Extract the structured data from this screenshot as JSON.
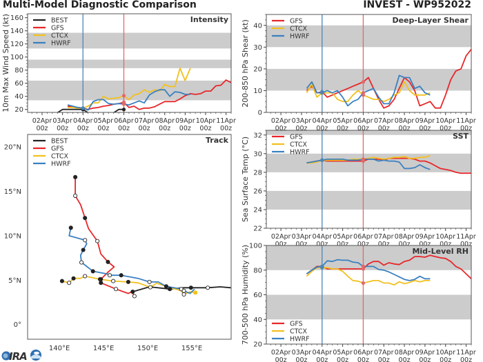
{
  "header": {
    "title": "Multi-Model Diagnostic Comparison",
    "storm": "INVEST - WP952022"
  },
  "logo_text": "CIRA",
  "colors": {
    "BEST": "#222222",
    "GFS": "#e8262a",
    "CTCX": "#f2c01e",
    "HWRF": "#3a80c0",
    "band": "#cccccc",
    "init_line": "#4a86b5",
    "current_line": "#e06a6a"
  },
  "time_axis": {
    "xlim": [
      "01Apr07z",
      "11Apr06z"
    ],
    "ticks": [
      {
        "day": "02Apr",
        "hour": "00z"
      },
      {
        "day": "03Apr",
        "hour": "00z"
      },
      {
        "day": "04Apr",
        "hour": "00z"
      },
      {
        "day": "05Apr",
        "hour": "00z"
      },
      {
        "day": "06Apr",
        "hour": "00z"
      },
      {
        "day": "07Apr",
        "hour": "00z"
      },
      {
        "day": "08Apr",
        "hour": "00z"
      },
      {
        "day": "09Apr",
        "hour": "00z"
      },
      {
        "day": "10Apr",
        "hour": "00z"
      },
      {
        "day": "11Apr",
        "hour": "00z"
      }
    ],
    "vertical_lines": [
      {
        "time": "04Apr00z",
        "color": "#4a86b5"
      },
      {
        "time": "06Apr00z",
        "color": "#e06a6a"
      }
    ]
  },
  "chart_data": [
    {
      "type": "line",
      "title": "Intensity",
      "ylabel": "10m Max Wind Speed (kt)",
      "ylim": [
        15.5,
        166
      ],
      "yticks": [
        20,
        40,
        60,
        80,
        100,
        120,
        140,
        160
      ],
      "bands": [
        [
          34,
          64
        ],
        [
          83,
          96
        ],
        [
          113,
          137
        ]
      ],
      "legend": "top-left",
      "grid": false,
      "series": [
        {
          "name": "BEST",
          "start": "02Apr18z",
          "step_hours": 6,
          "values": [
            15,
            20,
            20,
            20,
            20,
            20,
            15,
            15,
            15,
            15,
            15,
            15,
            20,
            20
          ]
        },
        {
          "name": "GFS",
          "start": "03Apr06z",
          "step_hours": 6,
          "values": [
            25,
            24,
            23,
            22,
            20,
            22,
            23,
            25,
            26,
            28,
            29,
            31,
            23,
            25,
            20,
            22,
            22,
            24,
            28,
            32,
            32,
            32,
            36,
            41,
            44,
            43,
            44,
            48,
            48,
            56,
            57,
            65,
            61
          ]
        },
        {
          "name": "CTCX",
          "start": "03Apr06z",
          "step_hours": 6,
          "values": [
            23,
            23,
            22,
            22,
            25,
            30,
            30,
            40,
            36,
            37,
            38,
            41,
            35,
            42,
            44,
            50,
            46,
            50,
            48,
            58,
            55,
            55,
            83,
            64,
            83
          ]
        },
        {
          "name": "HWRF",
          "start": "03Apr06z",
          "step_hours": 6,
          "values": [
            27,
            25,
            23,
            22,
            19,
            32,
            35,
            35,
            29,
            28,
            29,
            28,
            27,
            30,
            33,
            30,
            42,
            47,
            50,
            50,
            40,
            47,
            46,
            43,
            43
          ]
        }
      ]
    },
    {
      "type": "line",
      "title": "Deep-Layer Shear",
      "ylabel": "200-850 hPa Shear (kt)",
      "ylim": [
        0,
        45
      ],
      "yticks": [
        0,
        10,
        20,
        30,
        40
      ],
      "bands": [
        [
          10,
          20
        ],
        [
          30,
          40
        ]
      ],
      "legend": "top-left",
      "grid": false,
      "series": [
        {
          "name": "GFS",
          "start": "03Apr06z",
          "step_hours": 6,
          "values": [
            10,
            12,
            9,
            9.5,
            7,
            8,
            9,
            10,
            11,
            12,
            13,
            14,
            16,
            11,
            6,
            2,
            3,
            6,
            11,
            16,
            14,
            10,
            3,
            4,
            5,
            2,
            2,
            8,
            15,
            19,
            20,
            26,
            29
          ]
        },
        {
          "name": "CTCX",
          "start": "03Apr06z",
          "step_hours": 6,
          "values": [
            9,
            13,
            7,
            9,
            9,
            9,
            6,
            5,
            5,
            8,
            10,
            8,
            7,
            6,
            6,
            5,
            6,
            8,
            9,
            14,
            10,
            8,
            8,
            8,
            9
          ]
        },
        {
          "name": "HWRF",
          "start": "03Apr06z",
          "step_hours": 6,
          "values": [
            11,
            14,
            9,
            9,
            10,
            9,
            10,
            7,
            3,
            5,
            6,
            9,
            10,
            11,
            7,
            4,
            4,
            9,
            17,
            16,
            16,
            11,
            12,
            9,
            8
          ]
        }
      ]
    },
    {
      "type": "line",
      "title": "SST",
      "ylabel": "Sea Surface Temp (°C)",
      "ylim": [
        22,
        32.5
      ],
      "yticks": [
        22,
        24,
        26,
        28,
        30,
        32
      ],
      "bands": [
        [
          24,
          26
        ],
        [
          28,
          30
        ],
        [
          32,
          32.5
        ]
      ],
      "legend": "top-left",
      "grid": false,
      "series": [
        {
          "name": "GFS",
          "start": "03Apr06z",
          "step_hours": 6,
          "values": [
            29.0,
            29.1,
            29.2,
            29.3,
            29.2,
            29.2,
            29.2,
            29.2,
            29.2,
            29.2,
            29.2,
            29.2,
            29.4,
            29.4,
            29.4,
            29.3,
            29.5,
            29.5,
            29.5,
            29.5,
            29.5,
            29.4,
            29.2,
            29.2,
            29.0,
            28.7,
            28.4,
            28.3,
            28.2,
            28.0,
            27.9,
            27.9,
            27.9
          ]
        },
        {
          "name": "CTCX",
          "start": "03Apr06z",
          "step_hours": 6,
          "values": [
            29.0,
            29.0,
            29.1,
            29.3,
            29.3,
            29.3,
            29.3,
            29.3,
            29.3,
            29.4,
            29.4,
            29.4,
            29.5,
            29.6,
            29.5,
            29.4,
            29.5,
            29.6,
            29.6,
            29.7,
            29.5,
            29.5,
            29.6,
            29.6,
            29.8
          ]
        },
        {
          "name": "HWRF",
          "start": "03Apr06z",
          "step_hours": 6,
          "values": [
            29.0,
            29.1,
            29.2,
            29.3,
            29.4,
            29.4,
            29.4,
            29.4,
            29.3,
            29.3,
            29.3,
            29.4,
            29.4,
            29.4,
            29.2,
            29.3,
            29.2,
            29.2,
            29.1,
            28.4,
            28.4,
            28.5,
            28.8,
            28.5,
            28.3
          ]
        }
      ]
    },
    {
      "type": "line",
      "title": "Mid-Level RH",
      "ylabel": "700-500 hPa Humidity (%)",
      "ylim": [
        20,
        100
      ],
      "yticks": [
        20,
        40,
        60,
        80,
        100
      ],
      "bands": [
        [
          40,
          60
        ],
        [
          80,
          100
        ]
      ],
      "legend": "bottom-left",
      "grid": false,
      "series": [
        {
          "name": "GFS",
          "start": "03Apr06z",
          "step_hours": 6,
          "values": [
            77,
            80,
            83,
            83,
            81,
            81,
            81,
            81,
            81,
            81,
            81,
            81,
            85,
            87,
            87,
            84,
            86,
            85,
            84.5,
            87,
            88,
            91,
            91,
            90.5,
            92,
            91,
            90,
            89.5,
            87,
            83,
            81,
            77,
            73
          ]
        },
        {
          "name": "CTCX",
          "start": "03Apr06z",
          "step_hours": 6,
          "values": [
            75,
            79,
            82,
            82,
            82,
            81,
            81,
            79,
            75,
            71.5,
            71,
            69.5,
            70.5,
            71.5,
            71.5,
            69.5,
            69.5,
            68,
            70.5,
            69,
            70,
            71.5,
            70.5,
            71.5,
            71.5
          ]
        },
        {
          "name": "HWRF",
          "start": "03Apr06z",
          "step_hours": 6,
          "values": [
            77,
            80,
            82.5,
            83,
            87.5,
            87,
            88.5,
            88,
            88,
            86.5,
            86,
            83,
            83,
            83,
            80.5,
            80,
            78.5,
            76.5,
            74.5,
            72.5,
            71.5,
            72.5,
            75,
            73,
            73
          ]
        }
      ]
    },
    {
      "type": "line",
      "title": "Track",
      "legend": "top-left",
      "xlim": [
        136.4,
        159.45
      ],
      "ylim": [
        -1.65,
        21.4
      ],
      "xticks": [
        {
          "v": 140,
          "label": "140°E"
        },
        {
          "v": 145,
          "label": "145°E"
        },
        {
          "v": 150,
          "label": "150°E"
        },
        {
          "v": 155,
          "label": "155°E"
        }
      ],
      "yticks": [
        {
          "v": 0,
          "label": "0°"
        },
        {
          "v": 5,
          "label": "5°N"
        },
        {
          "v": 10,
          "label": "10°N"
        },
        {
          "v": 15,
          "label": "15°N"
        },
        {
          "v": 20,
          "label": "20°N"
        }
      ],
      "series": [
        {
          "name": "BEST",
          "points": [
            [
              148.3,
              3.7,
              1
            ],
            [
              150.2,
              4.25,
              null
            ],
            [
              152.5,
              4.0,
              1
            ],
            [
              154.1,
              4.15,
              null
            ],
            [
              154.9,
              4.15,
              1
            ],
            [
              156.8,
              4.15,
              0
            ],
            [
              158.2,
              4.25,
              null
            ],
            [
              159.4,
              4.15,
              null
            ]
          ]
        },
        {
          "name": "GFS",
          "points": [
            [
              141.8,
              16.6,
              1
            ],
            [
              141.8,
              14.5,
              0
            ],
            [
              142.4,
              13.5,
              null
            ],
            [
              142.9,
              12.0,
              1
            ],
            [
              143.3,
              10.8,
              null
            ],
            [
              144.3,
              9.4,
              0
            ],
            [
              144.7,
              7.95,
              null
            ],
            [
              145.5,
              7.05,
              1
            ],
            [
              146.2,
              6.5,
              null
            ],
            [
              145.5,
              5.9,
              null
            ],
            [
              144.7,
              5.1,
              1
            ],
            [
              144.7,
              4.7,
              1
            ],
            [
              146.4,
              4.0,
              0
            ],
            [
              147.8,
              3.5,
              null
            ],
            [
              148.2,
              3.7,
              null
            ],
            [
              148.5,
              3.2,
              0
            ]
          ]
        },
        {
          "name": "CTCX",
          "points": [
            [
              140.3,
              4.9,
              1
            ],
            [
              141.1,
              4.7,
              0
            ],
            [
              141.6,
              5.2,
              1
            ],
            [
              142.4,
              5.2,
              null
            ],
            [
              142.9,
              5.45,
              0
            ],
            [
              144.6,
              5.1,
              1
            ],
            [
              146.1,
              4.9,
              0
            ],
            [
              147.8,
              4.8,
              1
            ],
            [
              148.9,
              4.7,
              null
            ],
            [
              150.3,
              4.2,
              0
            ],
            [
              151.0,
              4.65,
              null
            ],
            [
              152.1,
              4.3,
              null
            ],
            [
              153.8,
              3.8,
              null
            ],
            [
              154.1,
              3.4,
              0
            ],
            [
              154.8,
              3.7,
              null
            ],
            [
              155.4,
              3.6,
              1
            ]
          ]
        },
        {
          "name": "HWRF",
          "points": [
            [
              141.3,
              10.9,
              1
            ],
            [
              141.1,
              10.0,
              null
            ],
            [
              142.9,
              9.5,
              0
            ],
            [
              143.1,
              9.1,
              null
            ],
            [
              142.7,
              8.4,
              1
            ],
            [
              142.4,
              7.8,
              null
            ],
            [
              142.5,
              7.0,
              0
            ],
            [
              143.8,
              6.0,
              1
            ],
            [
              145.4,
              5.7,
              null
            ],
            [
              145.7,
              5.55,
              0
            ],
            [
              147.0,
              5.55,
              1
            ],
            [
              148.9,
              5.2,
              null
            ],
            [
              150.2,
              4.8,
              0
            ],
            [
              151.2,
              4.8,
              null
            ],
            [
              152.1,
              4.3,
              1
            ],
            [
              153.8,
              4.0,
              0
            ],
            [
              154.1,
              3.8,
              0
            ],
            [
              154.8,
              3.5,
              null
            ],
            [
              155.3,
              4.0,
              null
            ]
          ]
        }
      ]
    }
  ]
}
